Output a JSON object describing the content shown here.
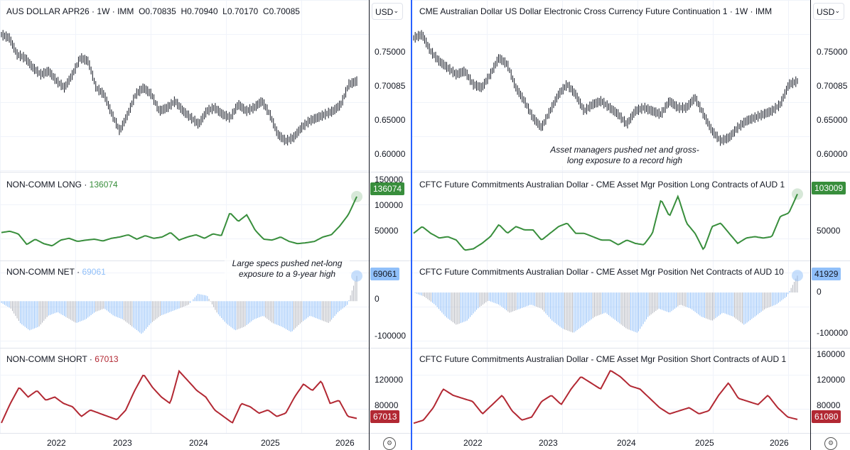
{
  "left": {
    "price_legend": {
      "symbol": "AUS DOLLAR APR26",
      "interval": "1W",
      "exchange": "IMM",
      "open": "O0.70835",
      "high": "H0.70940",
      "low": "L0.70170",
      "close": "C0.70085"
    },
    "long_legend": {
      "name": "NON-COMM LONG",
      "value": "136074"
    },
    "net_legend": {
      "name": "NON-COMM NET",
      "value": "69061"
    },
    "short_legend": {
      "name": "NON-COMM SHORT",
      "value": "67013"
    },
    "annotation": "Large specs pushed net-long exposure to a 9-year high",
    "price_ticks": [
      "0.75000",
      "0.70085",
      "0.65000",
      "0.60000"
    ],
    "long_ticks": [
      "150000",
      "100000",
      "50000"
    ],
    "net_ticks": [
      "0",
      "-100000"
    ],
    "short_ticks": [
      "120000",
      "80000"
    ],
    "badges": {
      "long": "136074",
      "net": "69061",
      "short": "67013"
    }
  },
  "right": {
    "price_legend": "CME Australian Dollar US Dollar Electronic Cross Currency Future Continuation 1 · 1W · IMM",
    "long_legend": "CFTC Future Commitments Australian Dollar - CME Asset Mgr Position Long Contracts of AUD 1",
    "net_legend": "CFTC Future Commitments Australian Dollar - CME Asset Mgr Position Net Contracts of AUD 10",
    "short_legend": "CFTC Future Commitments Australian Dollar - CME Asset Mgr Position Short Contracts of AUD 1",
    "annotation": "Asset managers pushed net and gross-long exposure to a record high",
    "price_ticks": [
      "0.75000",
      "0.70085",
      "0.65000",
      "0.60000"
    ],
    "long_ticks": [
      "50000"
    ],
    "net_ticks": [
      "0",
      "-100000"
    ],
    "short_ticks": [
      "160000",
      "120000",
      "80000"
    ],
    "badges": {
      "long": "103009",
      "net": "41929",
      "short": "61080"
    }
  },
  "currency": "USD",
  "time_ticks": [
    "2022",
    "2023",
    "2024",
    "2025",
    "2026"
  ],
  "colors": {
    "long": "#388e3c",
    "net_pos": "#90bff9",
    "net_neg": "#b2b5be",
    "short": "#b22833",
    "price": "#131722",
    "divider": "#2962ff"
  },
  "chart_data": [
    {
      "type": "bar",
      "name": "AUS DOLLAR APR26 weekly",
      "x_range": [
        "2021-06",
        "2026-03"
      ],
      "ylim": [
        0.58,
        0.8
      ],
      "values": [
        0.78,
        0.775,
        0.75,
        0.745,
        0.73,
        0.72,
        0.725,
        0.71,
        0.7,
        0.72,
        0.745,
        0.74,
        0.7,
        0.69,
        0.66,
        0.635,
        0.66,
        0.69,
        0.7,
        0.69,
        0.665,
        0.67,
        0.68,
        0.665,
        0.655,
        0.645,
        0.665,
        0.67,
        0.66,
        0.655,
        0.675,
        0.665,
        0.67,
        0.68,
        0.66,
        0.63,
        0.62,
        0.625,
        0.64,
        0.65,
        0.655,
        0.66,
        0.665,
        0.675,
        0.705,
        0.71
      ]
    },
    {
      "type": "line",
      "name": "NON-COMM LONG",
      "ylim": [
        0,
        160000
      ],
      "values": [
        55000,
        58000,
        52000,
        28000,
        40000,
        30000,
        25000,
        38000,
        42000,
        35000,
        38000,
        40000,
        36000,
        42000,
        45000,
        50000,
        40000,
        48000,
        42000,
        45000,
        55000,
        38000,
        45000,
        50000,
        42000,
        52000,
        48000,
        100000,
        80000,
        95000,
        60000,
        40000,
        38000,
        45000,
        35000,
        30000,
        32000,
        35000,
        45000,
        50000,
        70000,
        95000,
        136074
      ]
    },
    {
      "type": "bar",
      "name": "NON-COMM NET",
      "ylim": [
        -120000,
        90000
      ],
      "values": [
        -5000,
        -20000,
        -60000,
        -80000,
        -70000,
        -40000,
        -30000,
        -45000,
        -60000,
        -50000,
        -30000,
        -20000,
        -40000,
        -50000,
        -70000,
        -90000,
        -60000,
        -40000,
        -30000,
        -20000,
        -10000,
        20000,
        15000,
        -30000,
        -60000,
        -80000,
        -70000,
        -50000,
        -40000,
        -60000,
        -70000,
        -85000,
        -60000,
        -40000,
        -50000,
        -60000,
        -30000,
        -10000,
        69061
      ]
    },
    {
      "type": "line",
      "name": "NON-COMM SHORT",
      "ylim": [
        50000,
        165000
      ],
      "values": [
        60000,
        90000,
        115000,
        100000,
        110000,
        95000,
        100000,
        90000,
        85000,
        70000,
        80000,
        75000,
        70000,
        65000,
        80000,
        110000,
        135000,
        115000,
        100000,
        90000,
        140000,
        125000,
        110000,
        100000,
        80000,
        70000,
        60000,
        90000,
        85000,
        75000,
        80000,
        70000,
        75000,
        100000,
        120000,
        110000,
        125000,
        90000,
        95000,
        70000,
        67013
      ]
    },
    {
      "type": "bar",
      "name": "CME Australian Dollar continuation",
      "ylim": [
        0.58,
        0.8
      ],
      "values": [
        0.775,
        0.78,
        0.755,
        0.74,
        0.73,
        0.72,
        0.725,
        0.705,
        0.7,
        0.72,
        0.745,
        0.735,
        0.7,
        0.68,
        0.655,
        0.64,
        0.665,
        0.69,
        0.705,
        0.69,
        0.665,
        0.675,
        0.68,
        0.67,
        0.66,
        0.645,
        0.665,
        0.67,
        0.665,
        0.66,
        0.68,
        0.67,
        0.67,
        0.685,
        0.66,
        0.635,
        0.62,
        0.625,
        0.64,
        0.65,
        0.655,
        0.66,
        0.665,
        0.675,
        0.705,
        0.71
      ]
    },
    {
      "type": "line",
      "name": "Asset Mgr Long",
      "ylim": [
        10000,
        115000
      ],
      "values": [
        45000,
        55000,
        45000,
        38000,
        40000,
        35000,
        20000,
        22000,
        30000,
        40000,
        58000,
        45000,
        55000,
        50000,
        50000,
        35000,
        45000,
        55000,
        60000,
        45000,
        45000,
        40000,
        35000,
        35000,
        28000,
        35000,
        30000,
        28000,
        45000,
        95000,
        70000,
        100000,
        60000,
        45000,
        20000,
        55000,
        60000,
        45000,
        30000,
        38000,
        40000,
        38000,
        40000,
        70000,
        75000,
        103009
      ]
    },
    {
      "type": "bar",
      "name": "Asset Mgr Net",
      "ylim": [
        -130000,
        60000
      ],
      "values": [
        0,
        -10000,
        -30000,
        -60000,
        -80000,
        -70000,
        -40000,
        -20000,
        -30000,
        -50000,
        -40000,
        -30000,
        -40000,
        -70000,
        -90000,
        -100000,
        -80000,
        -60000,
        -50000,
        -70000,
        -90000,
        -100000,
        -60000,
        -40000,
        -50000,
        -30000,
        -40000,
        -60000,
        -70000,
        -50000,
        -60000,
        -80000,
        -60000,
        -40000,
        -30000,
        -10000,
        41929
      ]
    },
    {
      "type": "line",
      "name": "Asset Mgr Short",
      "ylim": [
        45000,
        165000
      ],
      "values": [
        55000,
        60000,
        80000,
        110000,
        100000,
        95000,
        90000,
        70000,
        85000,
        100000,
        75000,
        60000,
        65000,
        90000,
        100000,
        85000,
        110000,
        130000,
        120000,
        110000,
        140000,
        130000,
        115000,
        110000,
        95000,
        80000,
        70000,
        75000,
        80000,
        70000,
        75000,
        100000,
        120000,
        95000,
        90000,
        85000,
        100000,
        80000,
        65000,
        61080
      ]
    }
  ]
}
